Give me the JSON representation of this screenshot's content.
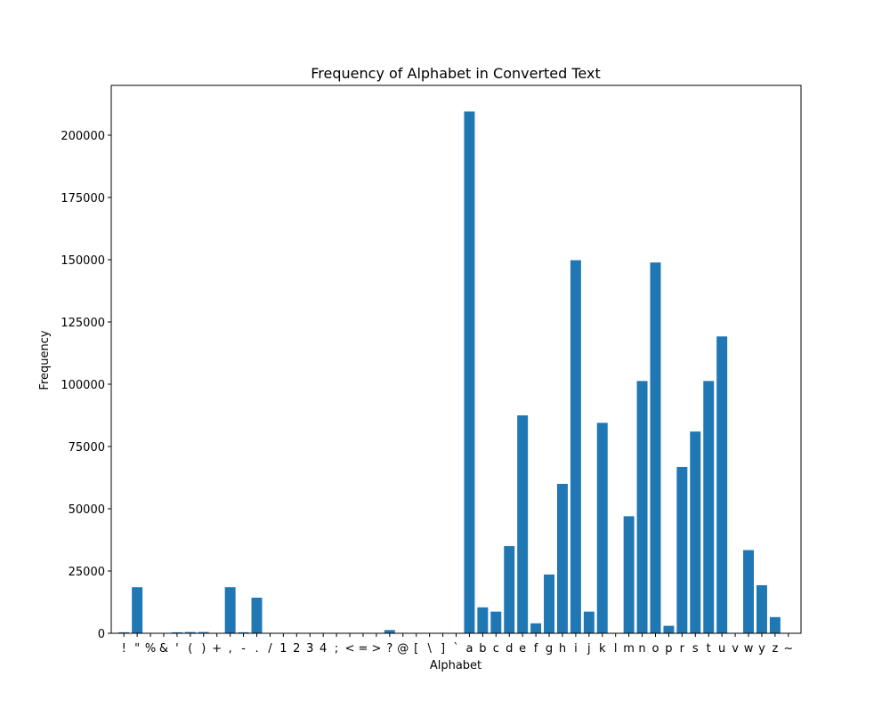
{
  "chart_data": {
    "type": "bar",
    "title": "Frequency of Alphabet in Converted Text",
    "xlabel": "Alphabet",
    "ylabel": "Frequency",
    "ylim": [
      0,
      220000
    ],
    "yticks": [
      0,
      25000,
      50000,
      75000,
      100000,
      125000,
      150000,
      175000,
      200000
    ],
    "grid": false,
    "bar_color": "#1f77b4",
    "categories": [
      "!",
      "\"",
      "%",
      "&",
      "'",
      "(",
      ")",
      "+",
      ",",
      "-",
      ".",
      "/",
      "1",
      "2",
      "3",
      "4",
      ";",
      "<",
      "=",
      ">",
      "?",
      "@",
      "[",
      "\\",
      "]",
      "`",
      "a",
      "b",
      "c",
      "d",
      "e",
      "f",
      "g",
      "h",
      "i",
      "j",
      "k",
      "l",
      "m",
      "n",
      "o",
      "p",
      "r",
      "s",
      "t",
      "u",
      "v",
      "w",
      "y",
      "z",
      "~"
    ],
    "values": [
      400,
      18500,
      0,
      0,
      400,
      500,
      500,
      0,
      18500,
      400,
      14300,
      0,
      0,
      0,
      0,
      0,
      0,
      0,
      0,
      0,
      1300,
      0,
      0,
      0,
      0,
      0,
      209500,
      10400,
      8700,
      35000,
      87500,
      4000,
      23600,
      60000,
      149800,
      8700,
      84500,
      0,
      47000,
      101300,
      148900,
      3000,
      66800,
      81000,
      101300,
      119200,
      0,
      33400,
      19300,
      6500,
      0
    ]
  }
}
